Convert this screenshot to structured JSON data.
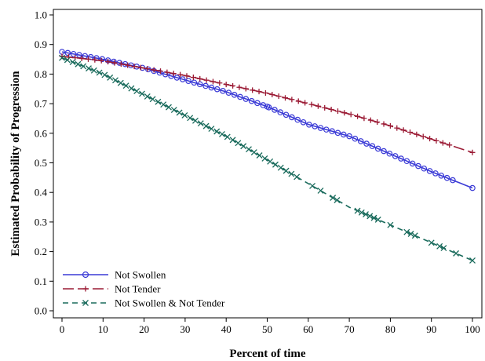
{
  "chart_data": {
    "type": "line",
    "title": "",
    "xlabel": "Percent of time",
    "ylabel": "Estimated Probability of Progression",
    "xlim": [
      0,
      100
    ],
    "ylim": [
      0.0,
      1.0
    ],
    "x_ticks": [
      0,
      10,
      20,
      30,
      40,
      50,
      60,
      70,
      80,
      90,
      100
    ],
    "x_tick_labels": [
      "0",
      "10",
      "20",
      "30",
      "40",
      "50",
      "60",
      "70",
      "80",
      "90",
      "100"
    ],
    "y_ticks": [
      0.0,
      0.1,
      0.2,
      0.3,
      0.4,
      0.5,
      0.6,
      0.7,
      0.8,
      0.9,
      1.0
    ],
    "y_tick_labels": [
      "0.0",
      "0.1",
      "0.2",
      "0.3",
      "0.4",
      "0.5",
      "0.6",
      "0.7",
      "0.8",
      "0.9",
      "1.0"
    ],
    "grid": false,
    "legend_position": "bottom-left",
    "series": [
      {
        "name": "Not Swollen",
        "color": "#3a3ad6",
        "marker": "circle",
        "line_style": "solid",
        "x": [
          0,
          10,
          20,
          30,
          40,
          50,
          60,
          70,
          80,
          90,
          100
        ],
        "y": [
          0.875,
          0.85,
          0.82,
          0.78,
          0.74,
          0.69,
          0.63,
          0.59,
          0.53,
          0.47,
          0.415
        ]
      },
      {
        "name": "Not Tender",
        "color": "#9b1b35",
        "marker": "plus",
        "line_style": "long-dash",
        "x": [
          0,
          10,
          20,
          30,
          40,
          50,
          60,
          70,
          80,
          90,
          100
        ],
        "y": [
          0.86,
          0.845,
          0.82,
          0.795,
          0.765,
          0.735,
          0.7,
          0.665,
          0.625,
          0.58,
          0.535
        ]
      },
      {
        "name": "Not Swollen & Not Tender",
        "color": "#1a6b5c",
        "marker": "x",
        "line_style": "dash",
        "x": [
          0,
          10,
          20,
          30,
          40,
          50,
          60,
          70,
          80,
          90,
          100
        ],
        "y": [
          0.855,
          0.8,
          0.73,
          0.66,
          0.59,
          0.51,
          0.43,
          0.35,
          0.29,
          0.23,
          0.17
        ]
      }
    ]
  }
}
